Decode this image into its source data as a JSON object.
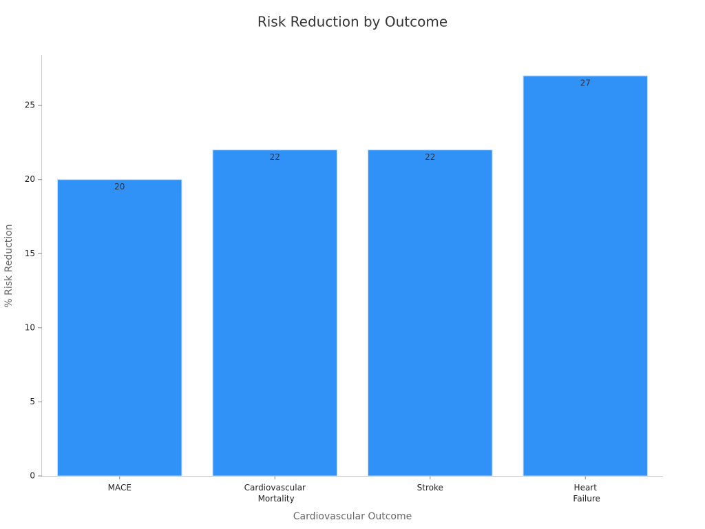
{
  "chart_data": {
    "type": "bar",
    "title": "Risk Reduction by Outcome",
    "x_label": "Cardiovascular Outcome",
    "y_label": "% Risk Reduction",
    "categories": [
      "MACE",
      "Cardiovascular Mortality",
      "Stroke",
      "Heart Failure"
    ],
    "values": [
      20,
      22,
      22,
      27
    ],
    "color": "#3091f7",
    "ylim": [
      0,
      28.4
    ],
    "yticks": [
      0,
      5,
      10,
      15,
      20,
      25
    ],
    "grid": false
  }
}
